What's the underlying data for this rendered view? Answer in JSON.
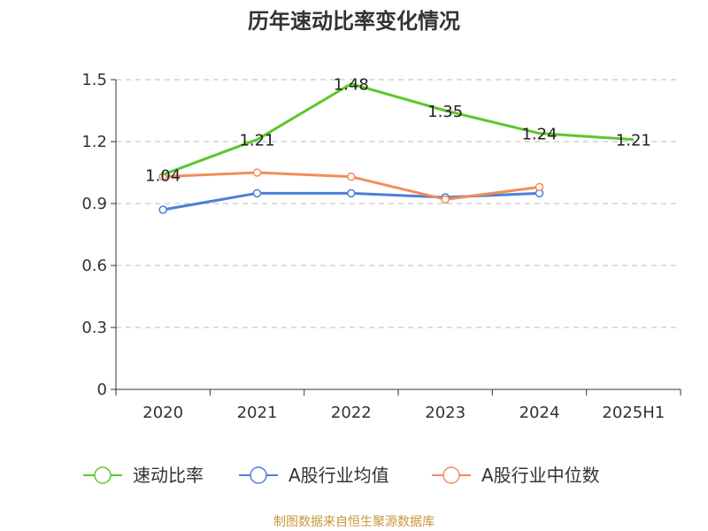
{
  "chart_data": {
    "type": "line",
    "title": "历年速动比率变化情况",
    "categories": [
      "2020",
      "2021",
      "2022",
      "2023",
      "2024",
      "2025H1"
    ],
    "y_ticks": [
      "0",
      "0.3",
      "0.6",
      "0.9",
      "1.2",
      "1.5"
    ],
    "ylim": [
      0,
      1.5
    ],
    "grid": true,
    "legend_position": "bottom",
    "series": [
      {
        "name": "速动比率",
        "color": "#5cc72c",
        "values": [
          1.04,
          1.21,
          1.48,
          1.35,
          1.24,
          1.21
        ],
        "labels": [
          "1.04",
          "1.21",
          "1.48",
          "1.35",
          "1.24",
          "1.21"
        ],
        "show_labels": true,
        "markers": false
      },
      {
        "name": "A股行业均值",
        "color": "#4a7fdb",
        "values": [
          0.87,
          0.95,
          0.95,
          0.93,
          0.95,
          null
        ],
        "show_labels": false,
        "markers": true
      },
      {
        "name": "A股行业中位数",
        "color": "#f28c5a",
        "values": [
          1.03,
          1.05,
          1.03,
          0.92,
          0.98,
          null
        ],
        "show_labels": false,
        "markers": true
      }
    ]
  },
  "source": {
    "text": "制图数据来自恒生聚源数据库",
    "color": "#c8963e"
  }
}
